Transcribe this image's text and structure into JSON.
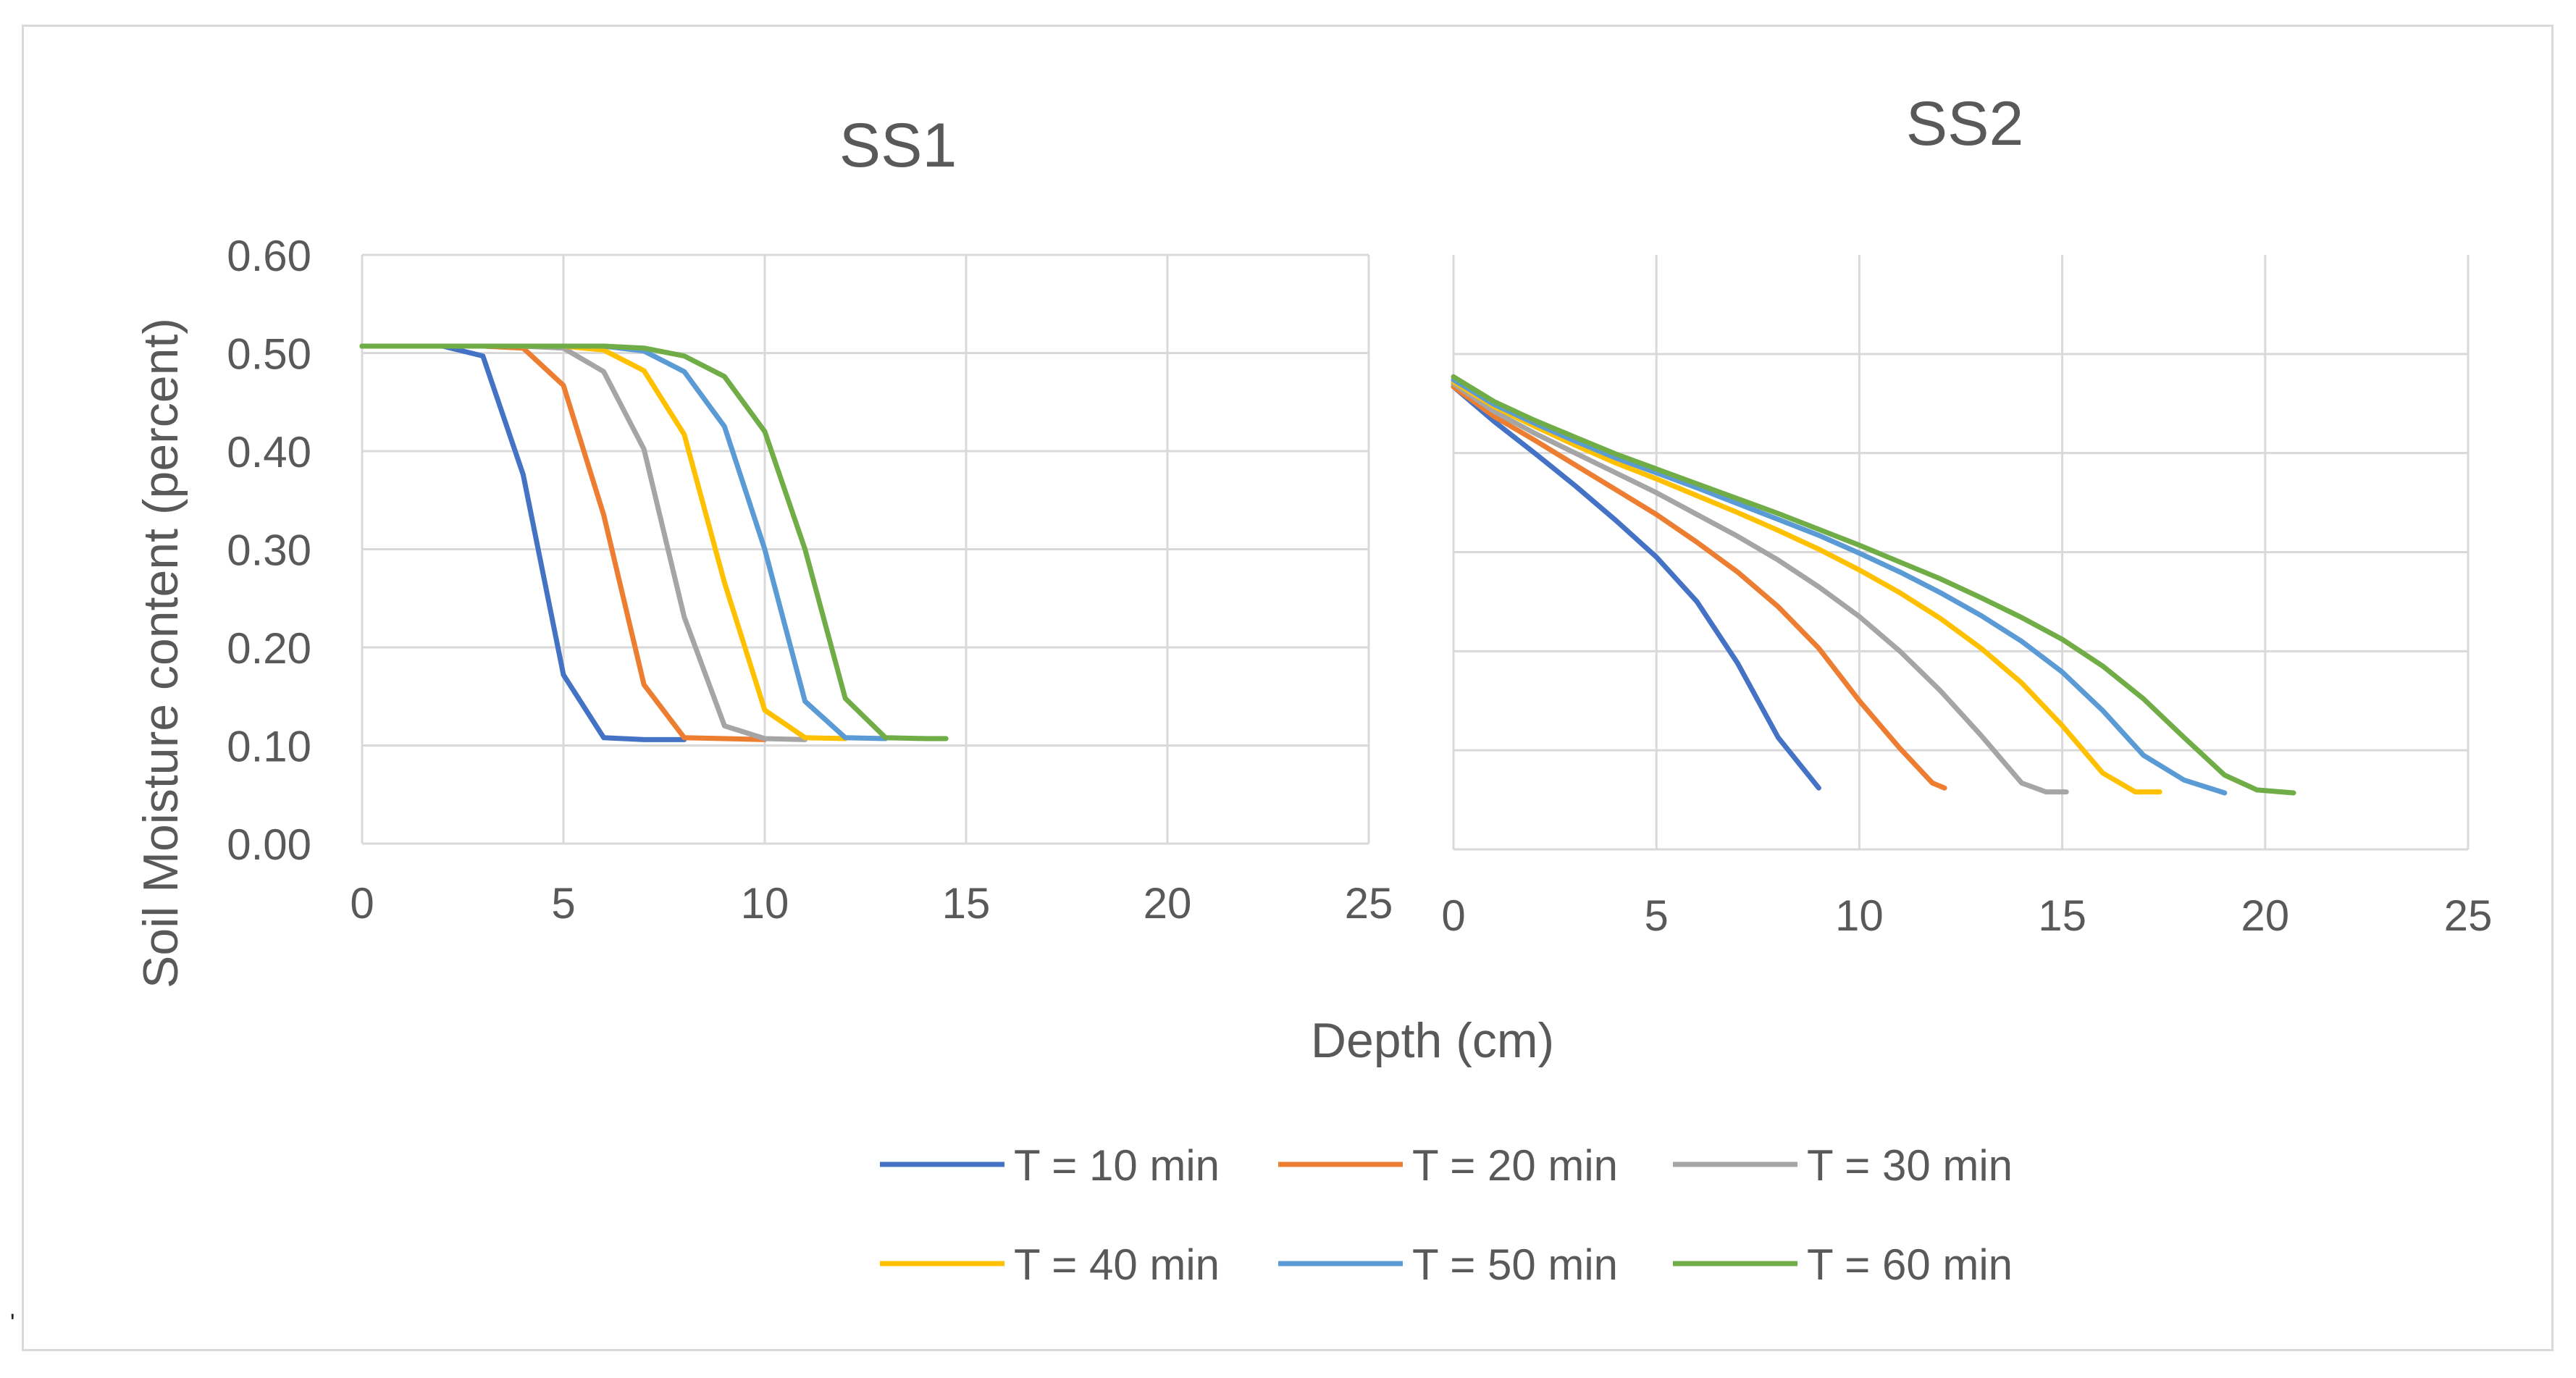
{
  "stray_mark": "'",
  "chart_data": {
    "type": "line",
    "xlabel": "Depth (cm)",
    "ylabel": "Soil Moisture content (percent)",
    "xlim": [
      0,
      25
    ],
    "x_ticks": [
      "0",
      "5",
      "10",
      "15",
      "20",
      "25"
    ],
    "ylim": [
      0,
      0.6
    ],
    "y_ticks": [
      "0.00",
      "0.10",
      "0.20",
      "0.30",
      "0.40",
      "0.50",
      "0.60"
    ],
    "legend_position": "bottom",
    "series_styles": [
      {
        "name": "T = 10 min",
        "color": "#4472C4"
      },
      {
        "name": "T = 20 min",
        "color": "#ED7D31"
      },
      {
        "name": "T = 30 min",
        "color": "#A5A5A5"
      },
      {
        "name": "T = 40 min",
        "color": "#FFC000"
      },
      {
        "name": "T = 50 min",
        "color": "#5B9BD5"
      },
      {
        "name": "T = 60 min",
        "color": "#70AD47"
      }
    ],
    "panels": [
      {
        "title": "SS1",
        "series": [
          {
            "name": "T = 10 min",
            "x": [
              0,
              1,
              2,
              3,
              4,
              5,
              6,
              7,
              8
            ],
            "y": [
              0.507,
              0.507,
              0.507,
              0.497,
              0.376,
              0.172,
              0.108,
              0.106,
              0.106
            ]
          },
          {
            "name": "T = 20 min",
            "x": [
              0,
              1,
              2,
              3,
              4,
              5,
              6,
              7,
              8,
              9,
              10
            ],
            "y": [
              0.507,
              0.507,
              0.507,
              0.507,
              0.505,
              0.467,
              0.335,
              0.162,
              0.108,
              0.107,
              0.106
            ]
          },
          {
            "name": "T = 30 min",
            "x": [
              0,
              1,
              2,
              3,
              4,
              5,
              6,
              7,
              8,
              9,
              10,
              11
            ],
            "y": [
              0.507,
              0.507,
              0.507,
              0.507,
              0.507,
              0.505,
              0.481,
              0.402,
              0.231,
              0.12,
              0.107,
              0.106
            ]
          },
          {
            "name": "T = 40 min",
            "x": [
              0,
              1,
              2,
              3,
              4,
              5,
              6,
              7,
              8,
              9,
              10,
              11,
              12
            ],
            "y": [
              0.507,
              0.507,
              0.507,
              0.507,
              0.507,
              0.507,
              0.503,
              0.482,
              0.417,
              0.266,
              0.136,
              0.108,
              0.107
            ]
          },
          {
            "name": "T = 50 min",
            "x": [
              0,
              1,
              2,
              3,
              4,
              5,
              6,
              7,
              8,
              9,
              10,
              11,
              12,
              13
            ],
            "y": [
              0.507,
              0.507,
              0.507,
              0.507,
              0.507,
              0.507,
              0.507,
              0.502,
              0.481,
              0.425,
              0.3,
              0.145,
              0.108,
              0.107
            ]
          },
          {
            "name": "T = 60 min",
            "x": [
              0,
              1,
              2,
              3,
              4,
              5,
              6,
              7,
              8,
              9,
              10,
              11,
              12,
              13,
              14,
              14.5
            ],
            "y": [
              0.507,
              0.507,
              0.507,
              0.507,
              0.507,
              0.507,
              0.507,
              0.505,
              0.497,
              0.476,
              0.42,
              0.3,
              0.148,
              0.108,
              0.107,
              0.107
            ]
          }
        ]
      },
      {
        "title": "SS2",
        "series": [
          {
            "name": "T = 10 min",
            "x": [
              0,
              1,
              2,
              3,
              4,
              5,
              6,
              7,
              8,
              9
            ],
            "y": [
              0.467,
              0.432,
              0.4,
              0.367,
              0.332,
              0.295,
              0.25,
              0.188,
              0.113,
              0.062
            ]
          },
          {
            "name": "T = 20 min",
            "x": [
              0,
              1,
              2,
              3,
              4,
              5,
              6,
              7,
              8,
              9,
              10,
              11,
              11.8,
              12.1
            ],
            "y": [
              0.467,
              0.437,
              0.413,
              0.388,
              0.363,
              0.338,
              0.31,
              0.28,
              0.245,
              0.203,
              0.15,
              0.102,
              0.067,
              0.062
            ]
          },
          {
            "name": "T = 30 min",
            "x": [
              0,
              1,
              2,
              3,
              4,
              5,
              6,
              7,
              8,
              9,
              10,
              11,
              12,
              13,
              14,
              14.6,
              15.1
            ],
            "y": [
              0.47,
              0.442,
              0.42,
              0.4,
              0.38,
              0.36,
              0.338,
              0.316,
              0.292,
              0.265,
              0.235,
              0.2,
              0.16,
              0.115,
              0.067,
              0.058,
              0.058
            ]
          },
          {
            "name": "T = 40 min",
            "x": [
              0,
              1,
              2,
              3,
              4,
              5,
              6,
              7,
              8,
              9,
              10,
              11,
              12,
              13,
              14,
              15,
              16,
              16.8,
              17.4
            ],
            "y": [
              0.472,
              0.447,
              0.427,
              0.408,
              0.39,
              0.374,
              0.357,
              0.34,
              0.322,
              0.303,
              0.282,
              0.259,
              0.233,
              0.203,
              0.168,
              0.125,
              0.077,
              0.058,
              0.058
            ]
          },
          {
            "name": "T = 50 min",
            "x": [
              0,
              1,
              2,
              3,
              4,
              5,
              6,
              7,
              8,
              9,
              10,
              11,
              12,
              13,
              14,
              15,
              16,
              17,
              18,
              19
            ],
            "y": [
              0.474,
              0.449,
              0.43,
              0.412,
              0.395,
              0.38,
              0.365,
              0.349,
              0.333,
              0.317,
              0.299,
              0.28,
              0.259,
              0.236,
              0.21,
              0.179,
              0.14,
              0.095,
              0.07,
              0.057
            ]
          },
          {
            "name": "T = 60 min",
            "x": [
              0,
              1,
              2,
              3,
              4,
              5,
              6,
              7,
              8,
              9,
              10,
              11,
              12,
              13,
              14,
              15,
              16,
              17,
              18,
              19,
              19.8,
              20.7
            ],
            "y": [
              0.477,
              0.452,
              0.433,
              0.416,
              0.399,
              0.384,
              0.369,
              0.354,
              0.339,
              0.323,
              0.307,
              0.29,
              0.273,
              0.254,
              0.234,
              0.212,
              0.185,
              0.152,
              0.113,
              0.075,
              0.06,
              0.057
            ]
          }
        ]
      }
    ]
  }
}
